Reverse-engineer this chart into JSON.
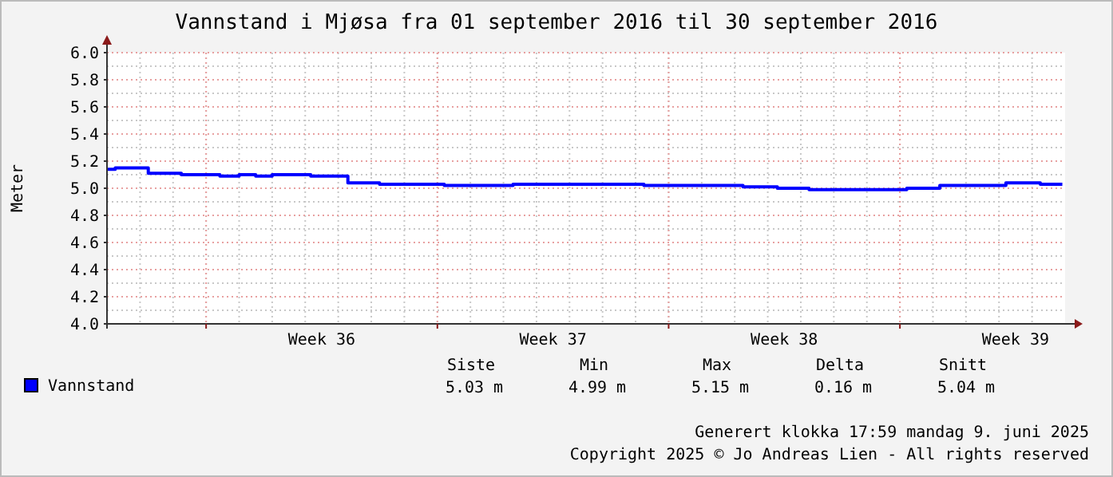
{
  "chart_data": {
    "type": "step",
    "title": "Vannstand i Mjøsa fra 01 september 2016 til 30 september 2016",
    "ylabel": "Meter",
    "x": [
      "2016-09-02T00:00",
      "2016-09-02T06:00",
      "2016-09-03T06:00",
      "2016-09-04T06:00",
      "2016-09-05T10:00",
      "2016-09-06T00:00",
      "2016-09-06T12:00",
      "2016-09-07T00:00",
      "2016-09-08T04:00",
      "2016-09-09T07:00",
      "2016-09-10T06:00",
      "2016-09-12T05:00",
      "2016-09-14T07:00",
      "2016-09-18T06:00",
      "2016-09-21T06:00",
      "2016-09-22T07:00",
      "2016-09-23T06:00",
      "2016-09-26T05:00",
      "2016-09-27T05:00",
      "2016-09-29T05:00",
      "2016-09-30T06:00",
      "2016-09-30T22:00"
    ],
    "series": [
      {
        "name": "Vannstand",
        "color": "#0000ff",
        "values": [
          5.14,
          5.15,
          5.11,
          5.1,
          5.09,
          5.1,
          5.09,
          5.1,
          5.09,
          5.04,
          5.03,
          5.02,
          5.03,
          5.02,
          5.01,
          5.0,
          4.99,
          5.0,
          5.02,
          5.04,
          5.03,
          5.03
        ]
      }
    ],
    "xlim": [
      "2016-09-02T00:00",
      "2016-10-01T00:00"
    ],
    "xticks": [
      {
        "value": "2016-09-05T00:00",
        "label": null
      },
      {
        "value": "2016-09-08T12:00",
        "label": "Week 36"
      },
      {
        "value": "2016-09-12T00:00",
        "label": null
      },
      {
        "value": "2016-09-15T12:00",
        "label": "Week 37"
      },
      {
        "value": "2016-09-19T00:00",
        "label": null
      },
      {
        "value": "2016-09-22T12:00",
        "label": "Week 38"
      },
      {
        "value": "2016-09-26T00:00",
        "label": null
      },
      {
        "value": "2016-09-29T12:00",
        "label": "Week 39"
      }
    ],
    "ylim": [
      4.0,
      6.0
    ],
    "yticks": [
      {
        "value": 4.0,
        "label": "4.0"
      },
      {
        "value": 4.2,
        "label": "4.2"
      },
      {
        "value": 4.4,
        "label": "4.4"
      },
      {
        "value": 4.6,
        "label": "4.6"
      },
      {
        "value": 4.8,
        "label": "4.8"
      },
      {
        "value": 5.0,
        "label": "5.0"
      },
      {
        "value": 5.2,
        "label": "5.2"
      },
      {
        "value": 5.4,
        "label": "5.4"
      },
      {
        "value": 5.6,
        "label": "5.6"
      },
      {
        "value": 5.8,
        "label": "5.8"
      },
      {
        "value": 6.0,
        "label": "6.0"
      }
    ],
    "grid": true,
    "legend": "bottom left",
    "line_style": "solid",
    "annotations": [
      "Siste",
      "Min",
      "Max",
      "Delta",
      "Snitt",
      "5.03 m",
      "4.99 m",
      "5.15 m",
      "0.16 m",
      "5.04 m",
      "Generert klokka 17:59 mandag 9. juni 2025",
      "Copyright 2025 © Jo Andreas Lien - All rights reserved"
    ]
  }
}
